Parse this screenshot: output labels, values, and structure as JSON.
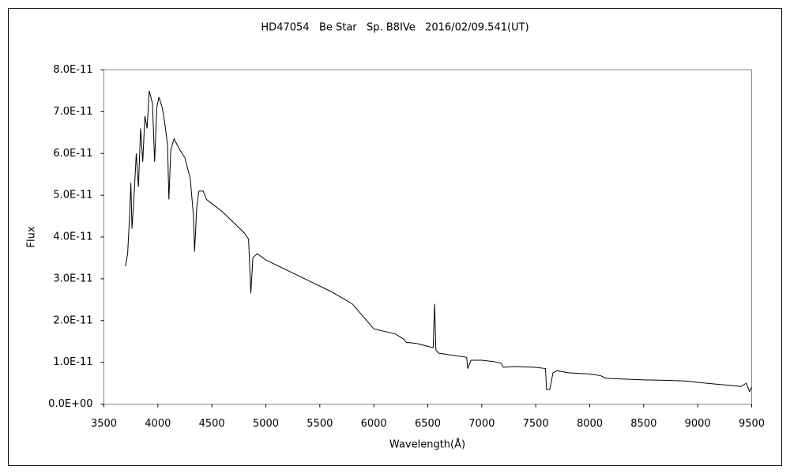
{
  "chart_data": {
    "type": "line",
    "title": "HD47054   Be Star   Sp. B8IVe   2016/02/09.541(UT)",
    "x_label": "Wavelength(Å)",
    "y_label": "Flux",
    "color": "#000000",
    "x": [
      3700,
      3720,
      3740,
      3750,
      3760,
      3780,
      3800,
      3820,
      3840,
      3860,
      3880,
      3900,
      3920,
      3950,
      3970,
      3990,
      4010,
      4040,
      4060,
      4090,
      4102,
      4120,
      4150,
      4200,
      4250,
      4300,
      4330,
      4340,
      4360,
      4380,
      4420,
      4450,
      4500,
      4600,
      4700,
      4800,
      4840,
      4861,
      4880,
      4920,
      5000,
      5200,
      5400,
      5600,
      5800,
      5900,
      6000,
      6200,
      6280,
      6300,
      6400,
      6550,
      6563,
      6575,
      6600,
      6700,
      6860,
      6870,
      6900,
      7000,
      7100,
      7180,
      7200,
      7300,
      7500,
      7590,
      7600,
      7630,
      7660,
      7700,
      7800,
      8000,
      8100,
      8150,
      8300,
      8500,
      8700,
      8900,
      9000,
      9200,
      9300,
      9400,
      9450,
      9480,
      9500
    ],
    "values": [
      3.3e-11,
      3.6e-11,
      4.6e-11,
      5.3e-11,
      4.2e-11,
      5e-11,
      6e-11,
      5.2e-11,
      6.6e-11,
      5.8e-11,
      6.9e-11,
      6.6e-11,
      7.5e-11,
      7.2e-11,
      5.8e-11,
      7.1e-11,
      7.35e-11,
      7.1e-11,
      6.8e-11,
      6.2e-11,
      4.9e-11,
      6.1e-11,
      6.35e-11,
      6.1e-11,
      5.9e-11,
      5.4e-11,
      4.5e-11,
      3.65e-11,
      4.7e-11,
      5.1e-11,
      5.1e-11,
      4.9e-11,
      4.8e-11,
      4.6e-11,
      4.35e-11,
      4.1e-11,
      3.95e-11,
      2.65e-11,
      3.5e-11,
      3.6e-11,
      3.45e-11,
      3.2e-11,
      2.95e-11,
      2.7e-11,
      2.4e-11,
      2.1e-11,
      1.8e-11,
      1.68e-11,
      1.55e-11,
      1.48e-11,
      1.45e-11,
      1.35e-11,
      2.4e-11,
      1.3e-11,
      1.22e-11,
      1.18e-11,
      1.12e-11,
      8.5e-12,
      1.05e-11,
      1.05e-11,
      1.02e-11,
      9.8e-12,
      8.8e-12,
      9e-12,
      8.8e-12,
      8.5e-12,
      3.5e-12,
      3.5e-12,
      7.5e-12,
      8e-12,
      7.5e-12,
      7.2e-12,
      6.8e-12,
      6.2e-12,
      6e-12,
      5.8e-12,
      5.7e-12,
      5.5e-12,
      5.2e-12,
      4.7e-12,
      4.5e-12,
      4.2e-12,
      5e-12,
      3e-12,
      4e-12
    ],
    "xlim": [
      3500,
      9500
    ],
    "xticks": [
      3500,
      4000,
      4500,
      5000,
      5500,
      6000,
      6500,
      7000,
      7500,
      8000,
      8500,
      9000,
      9500
    ],
    "ylim": [
      0,
      8e-11
    ],
    "yticks": [
      {
        "value": 0,
        "label": "0.0E+00"
      },
      {
        "value": 1e-11,
        "label": "1.0E-11"
      },
      {
        "value": 2e-11,
        "label": "2.0E-11"
      },
      {
        "value": 3e-11,
        "label": "3.0E-11"
      },
      {
        "value": 4e-11,
        "label": "4.0E-11"
      },
      {
        "value": 5e-11,
        "label": "5.0E-11"
      },
      {
        "value": 6e-11,
        "label": "6.0E-11"
      },
      {
        "value": 7e-11,
        "label": "7.0E-11"
      },
      {
        "value": 8e-11,
        "label": "8.0E-11"
      }
    ]
  }
}
